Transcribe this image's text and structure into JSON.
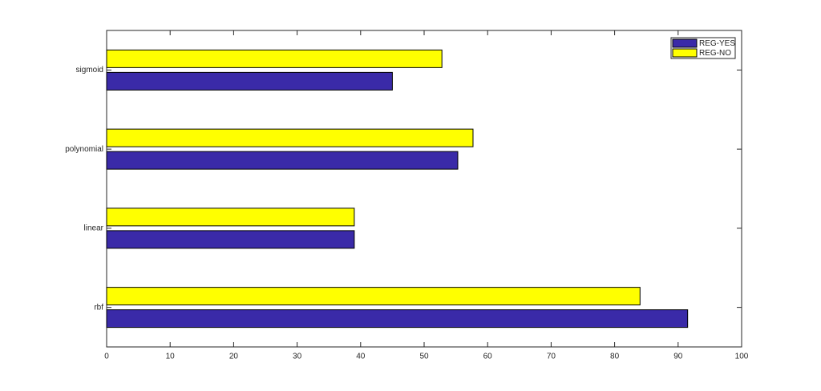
{
  "chart_data": {
    "type": "barh",
    "categories": [
      "rbf",
      "linear",
      "polynomial",
      "sigmoid"
    ],
    "series": [
      {
        "name": "REG-YES",
        "color": "#3a2aa8",
        "values": [
          91.5,
          39,
          55.3,
          45
        ]
      },
      {
        "name": "REG-NO",
        "color": "#ffff00",
        "values": [
          84,
          39,
          57.7,
          52.8
        ]
      }
    ],
    "xlim": [
      0,
      100
    ],
    "xticks": [
      0,
      10,
      20,
      30,
      40,
      50,
      60,
      70,
      80,
      90,
      100
    ],
    "legend": "upper right"
  }
}
